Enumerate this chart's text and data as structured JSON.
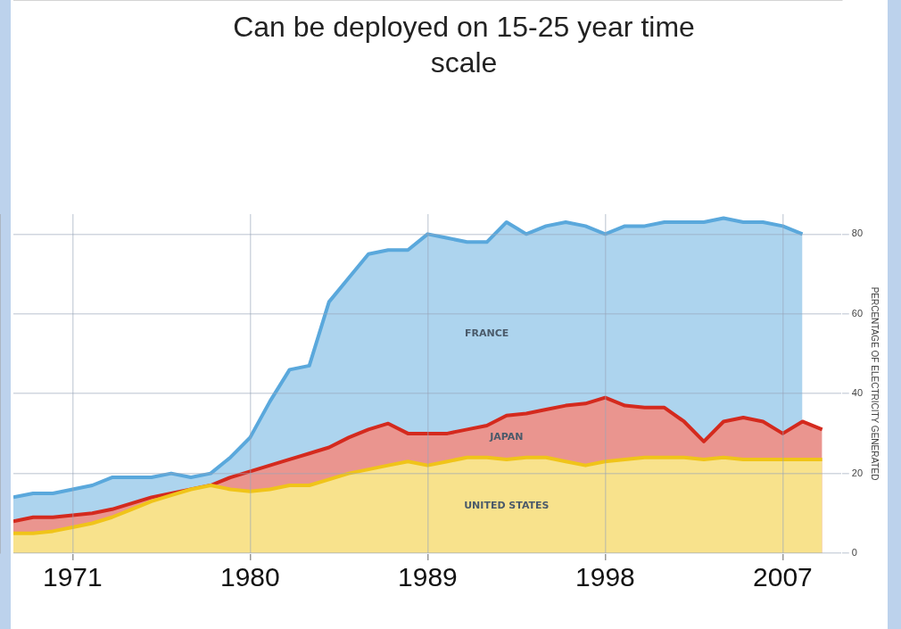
{
  "chart_data": {
    "type": "area",
    "title": "Can be deployed on 15-25 year time scale",
    "ylabel": "PERCENTAGE OF ELECTRICITY GENERATED",
    "xlim": [
      1968,
      2010
    ],
    "xticks": [
      1971,
      1980,
      1989,
      1998,
      2007
    ],
    "ylim": [
      0,
      85
    ],
    "yticks": [
      0,
      20,
      40,
      60,
      80
    ],
    "grid": true,
    "legend": false,
    "marker": "none",
    "series": [
      {
        "name": "FRANCE",
        "color": "#5aa8dc",
        "x": [
          1968,
          1969,
          1970,
          1971,
          1972,
          1973,
          1974,
          1975,
          1976,
          1977,
          1978,
          1979,
          1980,
          1981,
          1982,
          1983,
          1984,
          1985,
          1986,
          1987,
          1988,
          1989,
          1990,
          1991,
          1992,
          1993,
          1994,
          1995,
          1996,
          1997,
          1998,
          1999,
          2000,
          2001,
          2002,
          2003,
          2004,
          2005,
          2006,
          2007,
          2008
        ],
        "values": [
          14,
          15,
          15,
          16,
          17,
          19,
          19,
          19,
          20,
          19,
          20,
          24,
          29,
          38,
          46,
          47,
          63,
          69,
          75,
          76,
          76,
          80,
          79,
          78,
          78,
          83,
          80,
          82,
          83,
          82,
          80,
          82,
          82,
          83,
          83,
          83,
          84,
          83,
          83,
          82,
          80
        ]
      },
      {
        "name": "JAPAN",
        "color": "#d42a1e",
        "x": [
          1968,
          1969,
          1970,
          1971,
          1972,
          1973,
          1974,
          1975,
          1976,
          1977,
          1978,
          1979,
          1980,
          1981,
          1982,
          1983,
          1984,
          1985,
          1986,
          1987,
          1988,
          1989,
          1990,
          1991,
          1992,
          1993,
          1994,
          1995,
          1996,
          1997,
          1998,
          1999,
          2000,
          2001,
          2002,
          2003,
          2004,
          2005,
          2006,
          2007,
          2008,
          2009
        ],
        "values": [
          8,
          9,
          9,
          9.5,
          10,
          11,
          12.5,
          14,
          15,
          16,
          17,
          19,
          20.5,
          22,
          23.5,
          25,
          26.5,
          29,
          31,
          32.5,
          30,
          30,
          30,
          31,
          32,
          34.5,
          35,
          36,
          37,
          37.5,
          39,
          37,
          36.5,
          36.5,
          33,
          28,
          33,
          34,
          33,
          30,
          33,
          31
        ]
      },
      {
        "name": "UNITED STATES",
        "color": "#f0c419",
        "x": [
          1968,
          1969,
          1970,
          1971,
          1972,
          1973,
          1974,
          1975,
          1976,
          1977,
          1978,
          1979,
          1980,
          1981,
          1982,
          1983,
          1984,
          1985,
          1986,
          1987,
          1988,
          1989,
          1990,
          1991,
          1992,
          1993,
          1994,
          1995,
          1996,
          1997,
          1998,
          1999,
          2000,
          2001,
          2002,
          2003,
          2004,
          2005,
          2006,
          2007,
          2008,
          2009
        ],
        "values": [
          5,
          5,
          5.5,
          6.5,
          7.5,
          9,
          11,
          13,
          14.5,
          16,
          17,
          16,
          15.5,
          16,
          17,
          17,
          18.5,
          20,
          21,
          22,
          23,
          22,
          23,
          24,
          24,
          23.5,
          24,
          24,
          23,
          22,
          23,
          23.5,
          24,
          24,
          24,
          23.5,
          24,
          23.5,
          23.5,
          23.5,
          23.5,
          23.5
        ]
      }
    ]
  }
}
